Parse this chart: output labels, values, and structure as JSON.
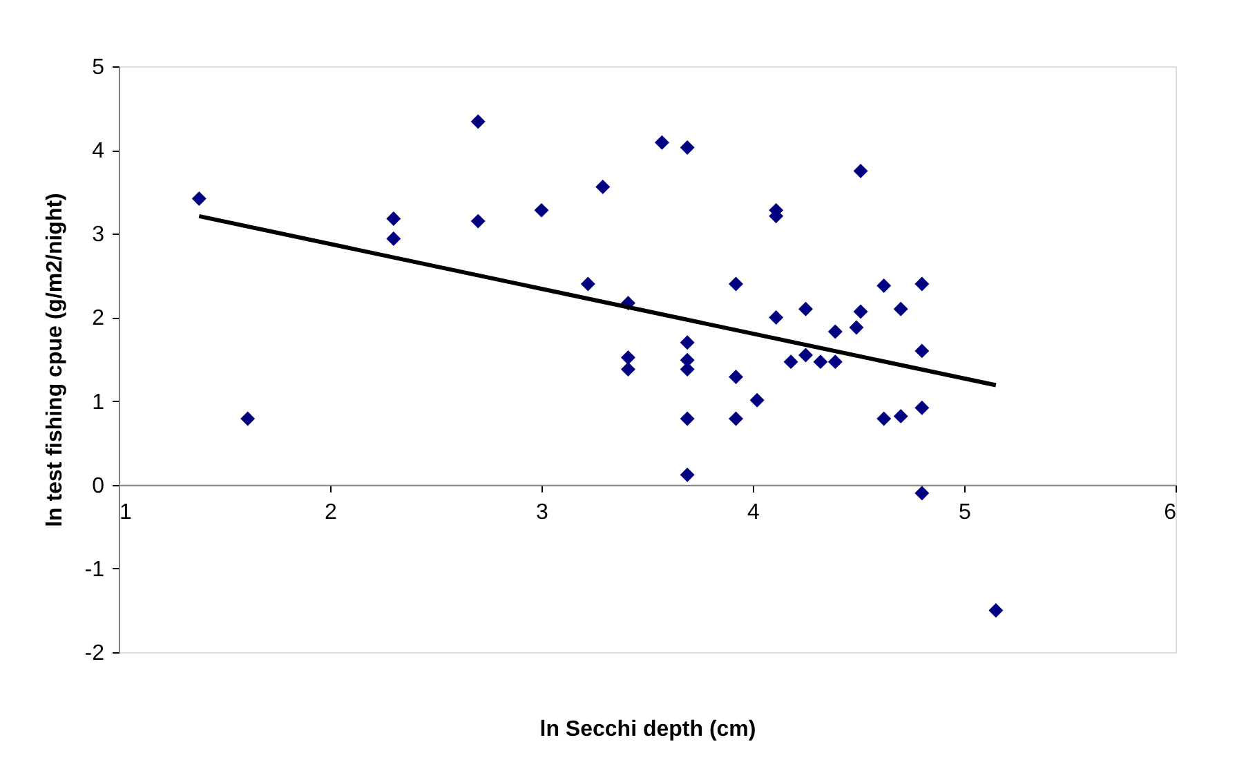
{
  "chart_data": {
    "type": "scatter",
    "xlabel": "ln Secchi depth (cm)",
    "ylabel": "ln test fishing cpue (g/m2/night)",
    "xlim": [
      1,
      6
    ],
    "xticks": [
      1,
      2,
      3,
      4,
      5,
      6
    ],
    "ylim": [
      -2,
      5
    ],
    "yticks": [
      -2,
      -1,
      0,
      1,
      2,
      3,
      4,
      5
    ],
    "grid": false,
    "marker": "diamond",
    "series": [
      {
        "color": "#000080",
        "x": [
          1.38,
          1.61,
          2.3,
          2.3,
          2.7,
          2.7,
          3.0,
          3.22,
          3.29,
          3.41,
          3.41,
          3.41,
          3.57,
          3.69,
          3.69,
          3.69,
          3.69,
          3.69,
          3.69,
          3.92,
          3.92,
          3.92,
          4.02,
          4.11,
          4.11,
          4.11,
          4.18,
          4.25,
          4.25,
          4.32,
          4.39,
          4.39,
          4.49,
          4.51,
          4.51,
          4.62,
          4.62,
          4.7,
          4.7,
          4.8,
          4.8,
          4.8,
          4.8,
          5.15
        ],
        "values": [
          3.42,
          0.79,
          3.18,
          2.94,
          4.34,
          3.15,
          3.28,
          2.4,
          3.56,
          2.17,
          1.52,
          1.38,
          4.09,
          4.03,
          1.7,
          1.49,
          1.38,
          0.79,
          0.12,
          2.4,
          1.29,
          0.79,
          1.01,
          3.28,
          3.21,
          2.0,
          1.47,
          2.1,
          1.55,
          1.47,
          1.83,
          1.47,
          1.88,
          3.75,
          2.07,
          2.38,
          0.79,
          2.1,
          0.82,
          2.4,
          1.6,
          0.92,
          -0.1,
          -1.5
        ]
      },
      {
        "type": "line",
        "color": "#000000",
        "x": [
          1.38,
          5.15
        ],
        "values": [
          3.21,
          1.19
        ],
        "line_style": "solid",
        "marker": "none"
      }
    ]
  }
}
